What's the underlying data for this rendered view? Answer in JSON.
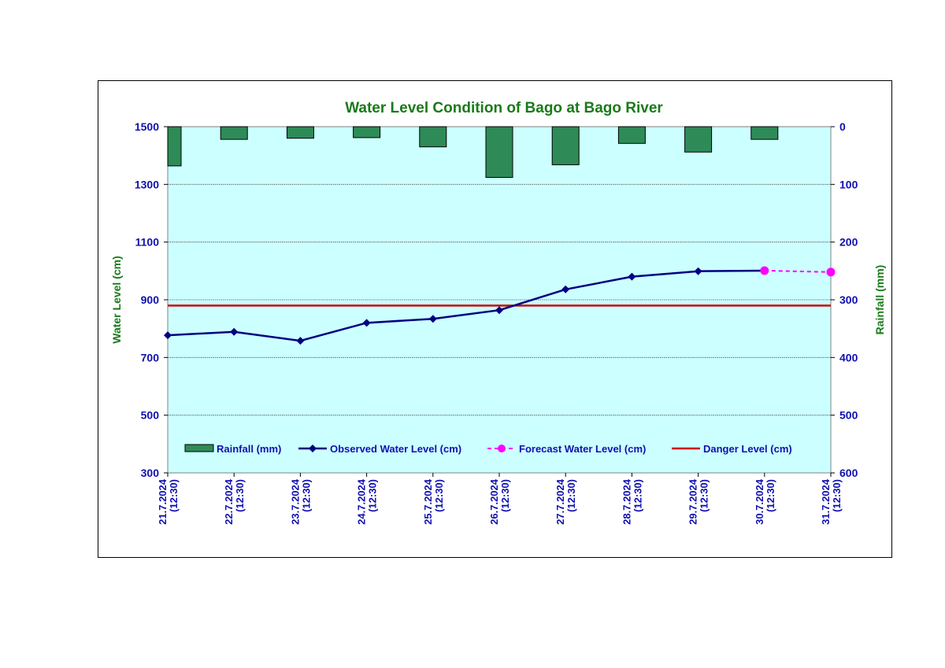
{
  "chart_data": {
    "type": "line",
    "title": "Water Level Condition of Bago at Bago River",
    "ylabel": "Water Level (cm)",
    "y2label": "Rainfall (mm)",
    "ylim": [
      300,
      1500
    ],
    "y2lim": [
      0,
      600
    ],
    "y2_inverted": true,
    "yticks": [
      "300",
      "500",
      "700",
      "900",
      "1100",
      "1300",
      "1500"
    ],
    "y2ticks": [
      "0",
      "100",
      "200",
      "300",
      "400",
      "500",
      "600"
    ],
    "categories": [
      "21.7.2024 (12:30)",
      "22.7.2024 (12:30)",
      "23.7.2024 (12:30)",
      "24.7.2024 (12:30)",
      "25.7.2024 (12:30)",
      "26.7.2024 (12:30)",
      "27.7.2024 (12:30)",
      "28.7.2024 (12:30)",
      "29.7.2024 (12:30)",
      "30.7.2024 (12:30)",
      "31.7.2024 (12:30)"
    ],
    "category_lines": [
      [
        "21.7.2024",
        "(12:30)"
      ],
      [
        "22.7.2024",
        "(12:30)"
      ],
      [
        "23.7.2024",
        "(12:30)"
      ],
      [
        "24.7.2024",
        "(12:30)"
      ],
      [
        "25.7.2024",
        "(12:30)"
      ],
      [
        "26.7.2024",
        "(12:30)"
      ],
      [
        "27.7.2024",
        "(12:30)"
      ],
      [
        "28.7.2024",
        "(12:30)"
      ],
      [
        "29.7.2024",
        "(12:30)"
      ],
      [
        "30.7.2024",
        "(12:30)"
      ],
      [
        "31.7.2024",
        "(12:30)"
      ]
    ],
    "series": [
      {
        "name": "Rainfall (mm)",
        "type": "bar",
        "axis": "right",
        "color": "#2e8b57",
        "values": [
          68,
          22,
          20,
          19,
          35,
          88,
          66,
          29,
          44,
          22,
          null
        ]
      },
      {
        "name": "Observed Water Level (cm)",
        "type": "line",
        "color": "#000080",
        "values": [
          777,
          789,
          758,
          820,
          834,
          864,
          936,
          980,
          999,
          1001,
          null
        ]
      },
      {
        "name": "Forecast Water Level (cm)",
        "type": "line",
        "dashed": true,
        "color": "#ff00ff",
        "values": [
          null,
          null,
          null,
          null,
          null,
          null,
          null,
          null,
          null,
          1001,
          996
        ]
      },
      {
        "name": "Danger Level (cm)",
        "type": "line",
        "color": "#cc0000",
        "values": [
          880,
          880,
          880,
          880,
          880,
          880,
          880,
          880,
          880,
          880,
          880
        ]
      }
    ],
    "grid": true,
    "legend_position": "bottom-inside",
    "plot_background": "#ccffff"
  }
}
